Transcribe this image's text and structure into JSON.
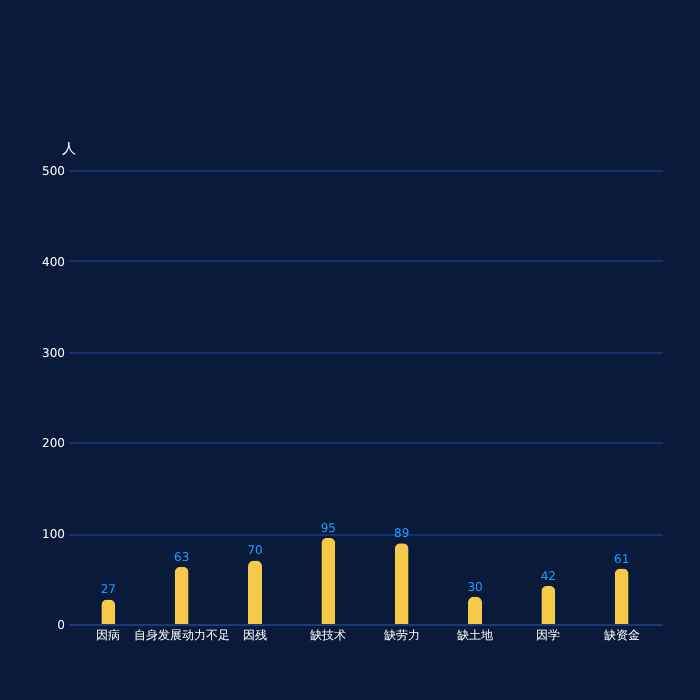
{
  "chart_data": {
    "type": "bar",
    "ylabel": "人",
    "categories": [
      "因病",
      "自身发展动力不足",
      "因残",
      "缺技术",
      "缺劳力",
      "缺土地",
      "因学",
      "缺资金"
    ],
    "values": [
      27,
      63,
      70,
      95,
      89,
      30,
      42,
      61
    ],
    "color": "#f7c948",
    "data_labels": true,
    "ylim": [
      0,
      500
    ],
    "yticks": [
      0,
      100,
      200,
      300,
      400,
      500
    ],
    "grid": "y"
  }
}
